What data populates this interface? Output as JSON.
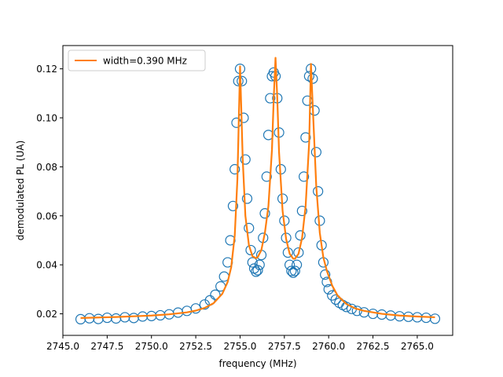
{
  "chart_data": {
    "type": "scatter",
    "xlabel": "frequency (MHz)",
    "ylabel": "demodulated PL (UA)",
    "xlim": [
      2745.0,
      2767.0
    ],
    "ylim": [
      0.0112,
      0.1295
    ],
    "xticks": [
      2745.0,
      2747.5,
      2750.0,
      2752.5,
      2755.0,
      2757.5,
      2760.0,
      2762.5,
      2765.0
    ],
    "xtick_labels": [
      "2745.0",
      "2747.5",
      "2750.0",
      "2752.5",
      "2755.0",
      "2757.5",
      "2760.0",
      "2762.5",
      "2765.0"
    ],
    "yticks": [
      0.02,
      0.04,
      0.06,
      0.08,
      0.1,
      0.12
    ],
    "ytick_labels": [
      "0.02",
      "0.04",
      "0.06",
      "0.08",
      "0.10",
      "0.12"
    ],
    "grid": false,
    "legend": {
      "placement": "upper-left",
      "entries": [
        "width=0.390 MHz"
      ]
    },
    "series": [
      {
        "kind": "scatter",
        "marker": "open-circle",
        "color": "#1f77b4",
        "x": [
          2746.0,
          2746.5,
          2747.0,
          2747.5,
          2748.0,
          2748.5,
          2749.0,
          2749.5,
          2750.0,
          2750.5,
          2751.0,
          2751.5,
          2752.0,
          2752.5,
          2753.0,
          2753.3,
          2753.6,
          2753.9,
          2754.1,
          2754.3,
          2754.45,
          2754.6,
          2754.7,
          2754.8,
          2754.9,
          2755.0,
          2755.1,
          2755.2,
          2755.3,
          2755.4,
          2755.5,
          2755.6,
          2755.7,
          2755.8,
          2755.9,
          2756.0,
          2756.1,
          2756.2,
          2756.3,
          2756.4,
          2756.5,
          2756.6,
          2756.7,
          2756.8,
          2756.9,
          2757.0,
          2757.1,
          2757.2,
          2757.3,
          2757.4,
          2757.5,
          2757.6,
          2757.7,
          2757.8,
          2757.9,
          2758.0,
          2758.1,
          2758.2,
          2758.3,
          2758.4,
          2758.5,
          2758.6,
          2758.7,
          2758.8,
          2758.9,
          2759.0,
          2759.1,
          2759.2,
          2759.3,
          2759.4,
          2759.5,
          2759.6,
          2759.7,
          2759.8,
          2759.9,
          2760.0,
          2760.2,
          2760.4,
          2760.6,
          2760.8,
          2761.0,
          2761.3,
          2761.6,
          2762.0,
          2762.5,
          2763.0,
          2763.5,
          2764.0,
          2764.5,
          2765.0,
          2765.5,
          2766.0
        ],
        "y": [
          0.0178,
          0.0182,
          0.0179,
          0.0184,
          0.0181,
          0.0186,
          0.0183,
          0.0189,
          0.0191,
          0.0194,
          0.0198,
          0.0205,
          0.0212,
          0.0222,
          0.0238,
          0.0255,
          0.0278,
          0.0312,
          0.0352,
          0.041,
          0.05,
          0.064,
          0.079,
          0.098,
          0.115,
          0.12,
          0.115,
          0.1,
          0.083,
          0.067,
          0.055,
          0.046,
          0.041,
          0.0385,
          0.0372,
          0.0378,
          0.04,
          0.044,
          0.051,
          0.061,
          0.076,
          0.093,
          0.108,
          0.117,
          0.1185,
          0.117,
          0.108,
          0.094,
          0.079,
          0.067,
          0.058,
          0.051,
          0.045,
          0.04,
          0.0375,
          0.0368,
          0.0375,
          0.04,
          0.045,
          0.052,
          0.062,
          0.076,
          0.092,
          0.107,
          0.117,
          0.12,
          0.116,
          0.103,
          0.086,
          0.07,
          0.058,
          0.048,
          0.041,
          0.036,
          0.033,
          0.03,
          0.0275,
          0.0258,
          0.0245,
          0.0236,
          0.0228,
          0.022,
          0.0212,
          0.0206,
          0.02,
          0.0197,
          0.0193,
          0.019,
          0.0188,
          0.0186,
          0.0184,
          0.018
        ]
      },
      {
        "kind": "line",
        "name": "width=0.390 MHz",
        "color": "#ff7f0e",
        "x": [
          2746.0,
          2747.0,
          2748.0,
          2749.0,
          2750.0,
          2751.0,
          2752.0,
          2752.5,
          2753.0,
          2753.5,
          2754.0,
          2754.3,
          2754.5,
          2754.7,
          2754.85,
          2755.0,
          2755.15,
          2755.3,
          2755.5,
          2755.7,
          2755.9,
          2756.0,
          2756.2,
          2756.4,
          2756.6,
          2756.8,
          2756.9,
          2757.0,
          2757.1,
          2757.2,
          2757.4,
          2757.6,
          2757.8,
          2758.0,
          2758.1,
          2758.3,
          2758.5,
          2758.7,
          2758.9,
          2759.0,
          2759.1,
          2759.3,
          2759.5,
          2759.7,
          2759.9,
          2760.2,
          2760.5,
          2761.0,
          2761.5,
          2762.0,
          2763.0,
          2764.0,
          2765.0,
          2766.0
        ],
        "y": [
          0.0183,
          0.0185,
          0.0187,
          0.019,
          0.0193,
          0.0198,
          0.0206,
          0.0213,
          0.0224,
          0.0243,
          0.0282,
          0.033,
          0.039,
          0.052,
          0.075,
          0.121,
          0.083,
          0.06,
          0.048,
          0.0435,
          0.0427,
          0.0432,
          0.046,
          0.053,
          0.064,
          0.087,
          0.108,
          0.1245,
          0.108,
          0.086,
          0.062,
          0.0505,
          0.0445,
          0.0425,
          0.0425,
          0.0445,
          0.051,
          0.064,
          0.09,
          0.122,
          0.105,
          0.072,
          0.053,
          0.043,
          0.0375,
          0.0315,
          0.0275,
          0.024,
          0.0222,
          0.0212,
          0.02,
          0.0193,
          0.0189,
          0.0186
        ]
      }
    ]
  }
}
